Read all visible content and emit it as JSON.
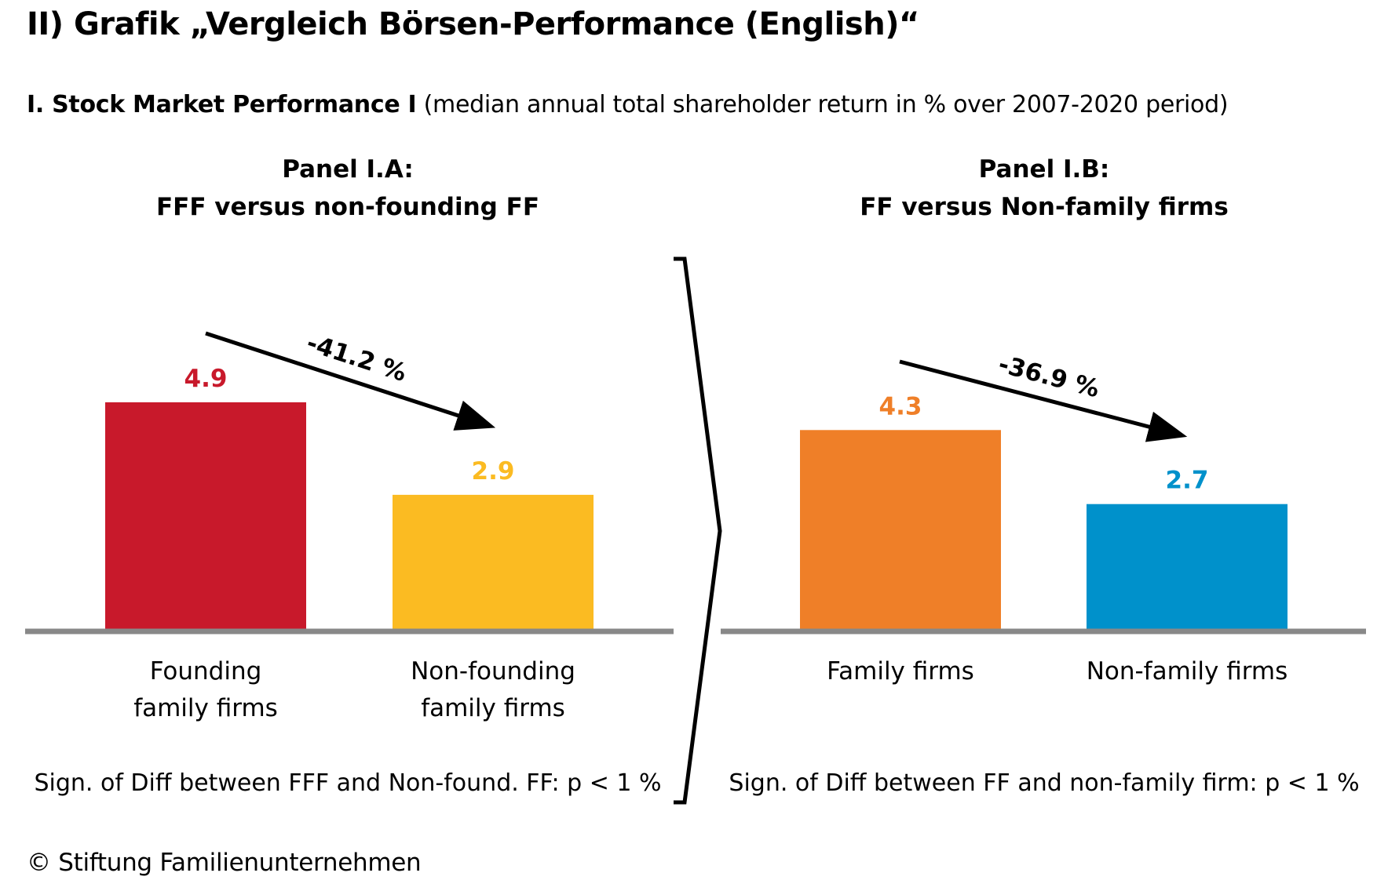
{
  "title": "II) Grafik „Vergleich Börsen-Performance (English)“",
  "subtitle_bold": "I. Stock Market Performance I",
  "subtitle_rest": "(median annual total shareholder return in % over 2007-2020 period)",
  "copyright": "© Stiftung Familienunternehmen",
  "colors": {
    "founding": "#C8192B",
    "nonfounding": "#FBBB22",
    "family": "#EF7F28",
    "nonfamily": "#0091CB",
    "axis": "#888888"
  },
  "chart_data": [
    {
      "type": "bar",
      "title": [
        "Panel I.A:",
        "FFF versus non-founding FF"
      ],
      "categories": [
        [
          "Founding",
          "family firms"
        ],
        [
          "Non-founding",
          "family firms"
        ]
      ],
      "values": [
        4.9,
        2.9
      ],
      "value_labels": [
        "4.9",
        "2.9"
      ],
      "change_label": "-41.2 %",
      "note": "Sign. of Diff between FFF and Non-found. FF: p < 1 %"
    },
    {
      "type": "bar",
      "title": [
        "Panel I.B:",
        "FF versus Non-family firms"
      ],
      "categories": [
        [
          "Family firms"
        ],
        [
          "Non-family firms"
        ]
      ],
      "values": [
        4.3,
        2.7
      ],
      "value_labels": [
        "4.3",
        "2.7"
      ],
      "change_label": "-36.9 %",
      "note": "Sign. of Diff between FF and non-family firm: p < 1 %"
    }
  ]
}
